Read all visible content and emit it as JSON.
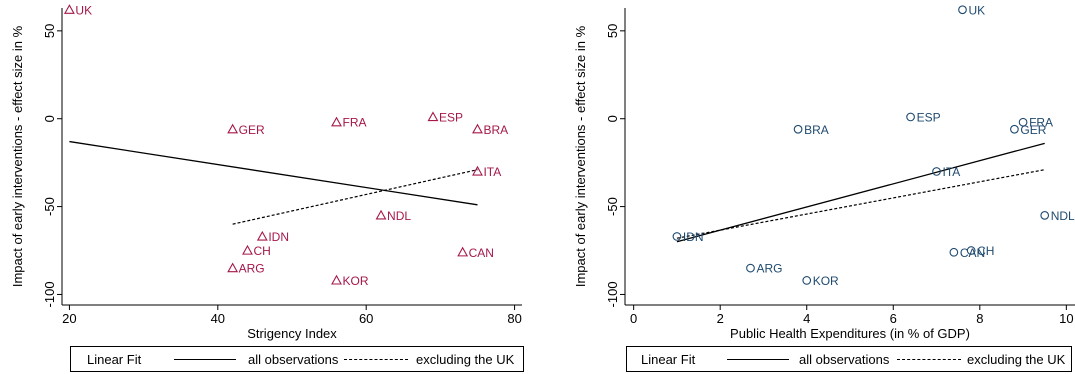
{
  "chart_data": [
    {
      "type": "scatter",
      "title": "",
      "xlabel": "Strigency Index",
      "ylabel": "Impact of early interventions - effect size in %",
      "xlim": [
        19,
        81
      ],
      "ylim": [
        -106,
        63
      ],
      "xticks": [
        20,
        40,
        60,
        80
      ],
      "yticks": [
        -100,
        -50,
        0,
        50
      ],
      "marker": "triangle",
      "color": "#a6174b",
      "points": [
        {
          "label": "UK",
          "x": 20,
          "y": 62
        },
        {
          "label": "ESP",
          "x": 69,
          "y": 1
        },
        {
          "label": "FRA",
          "x": 56,
          "y": -2
        },
        {
          "label": "GER",
          "x": 42,
          "y": -6
        },
        {
          "label": "BRA",
          "x": 75,
          "y": -6
        },
        {
          "label": "ITA",
          "x": 75,
          "y": -30
        },
        {
          "label": "NDL",
          "x": 62,
          "y": -55
        },
        {
          "label": "IDN",
          "x": 46,
          "y": -67
        },
        {
          "label": "CH",
          "x": 44,
          "y": -75
        },
        {
          "label": "CAN",
          "x": 73,
          "y": -76
        },
        {
          "label": "ARG",
          "x": 42,
          "y": -85
        },
        {
          "label": "KOR",
          "x": 56,
          "y": -92
        }
      ],
      "fit_all": {
        "x": [
          20,
          75
        ],
        "y": [
          -13,
          -49
        ]
      },
      "fit_excl_uk": {
        "x": [
          42,
          75
        ],
        "y": [
          -60,
          -29
        ]
      }
    },
    {
      "type": "scatter",
      "title": "",
      "xlabel": "Public Health Expenditures (in % of GDP)",
      "ylabel": "Impact of early interventions - effect size in %",
      "xlim": [
        -0.2,
        10.2
      ],
      "ylim": [
        -106,
        63
      ],
      "xticks": [
        0,
        2,
        4,
        6,
        8,
        10
      ],
      "yticks": [
        -100,
        -50,
        0,
        50
      ],
      "marker": "circle",
      "color": "#1f4a70",
      "points": [
        {
          "label": "UK",
          "x": 7.6,
          "y": 62
        },
        {
          "label": "ESP",
          "x": 6.4,
          "y": 1
        },
        {
          "label": "FRA",
          "x": 9.0,
          "y": -2
        },
        {
          "label": "GER",
          "x": 8.8,
          "y": -6
        },
        {
          "label": "BRA",
          "x": 3.8,
          "y": -6
        },
        {
          "label": "ITA",
          "x": 7.0,
          "y": -30
        },
        {
          "label": "NDL",
          "x": 9.5,
          "y": -55
        },
        {
          "label": "IDN",
          "x": 1.0,
          "y": -67
        },
        {
          "label": "CH",
          "x": 7.8,
          "y": -75
        },
        {
          "label": "CAN",
          "x": 7.4,
          "y": -76
        },
        {
          "label": "ARG",
          "x": 2.7,
          "y": -85
        },
        {
          "label": "KOR",
          "x": 4.0,
          "y": -92
        }
      ],
      "fit_all": {
        "x": [
          1.0,
          9.5
        ],
        "y": [
          -70,
          -14
        ]
      },
      "fit_excl_uk": {
        "x": [
          1.0,
          9.5
        ],
        "y": [
          -68,
          -29
        ]
      }
    }
  ],
  "legends": [
    {
      "title": "Linear Fit",
      "all_label": "all observations",
      "excl_label": "excluding the UK"
    },
    {
      "title": "Linear Fit",
      "all_label": "all observations",
      "excl_label": "excluding the UK"
    }
  ]
}
